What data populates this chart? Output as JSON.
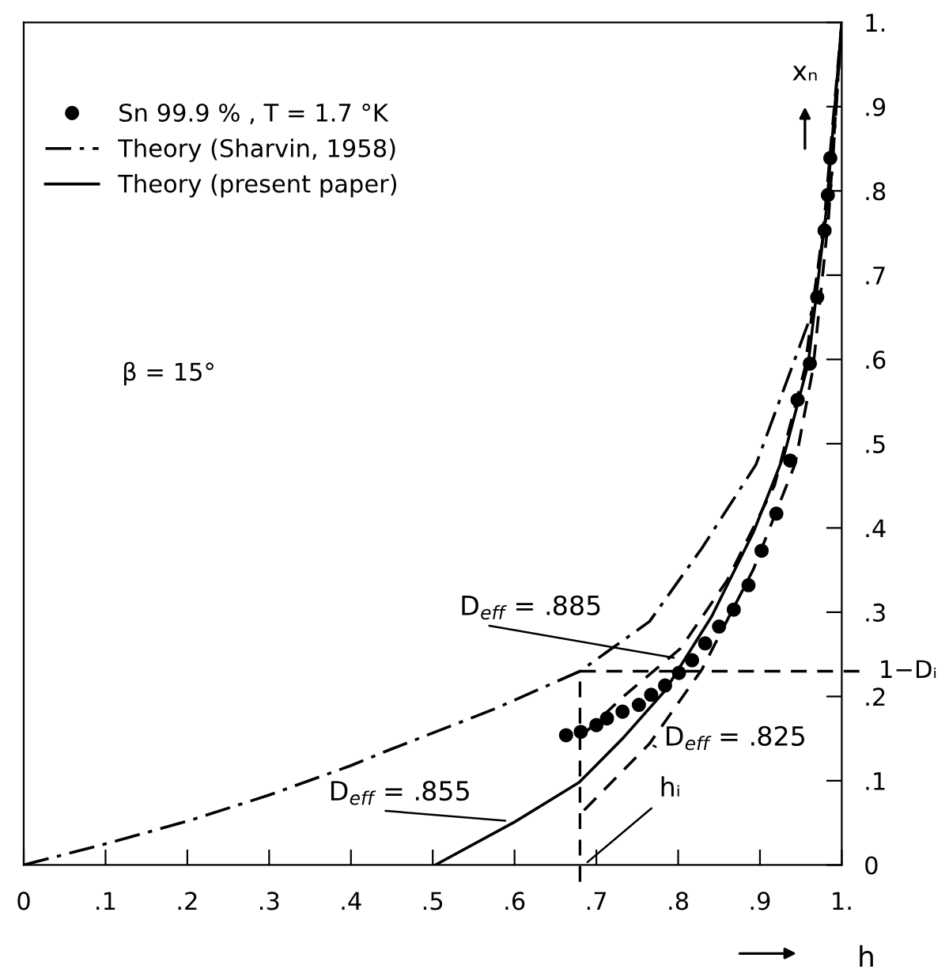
{
  "chart_data": {
    "type": "line",
    "xlabel": "h",
    "ylabel": "xₙ",
    "xlim": [
      0,
      1
    ],
    "ylim": [
      0,
      1
    ],
    "xticks": [
      {
        "value": 0,
        "label": "0"
      },
      {
        "value": 0.1,
        "label": ".1"
      },
      {
        "value": 0.2,
        "label": ".2"
      },
      {
        "value": 0.3,
        "label": ".3"
      },
      {
        "value": 0.4,
        "label": ".4"
      },
      {
        "value": 0.5,
        "label": ".5"
      },
      {
        "value": 0.6,
        "label": ".6"
      },
      {
        "value": 0.7,
        "label": ".7"
      },
      {
        "value": 0.8,
        "label": ".8"
      },
      {
        "value": 0.9,
        "label": ".9"
      },
      {
        "value": 1,
        "label": "1."
      }
    ],
    "yticks": [
      {
        "value": 0,
        "label": "0"
      },
      {
        "value": 0.1,
        "label": ".1"
      },
      {
        "value": 0.2,
        "label": ".2"
      },
      {
        "value": 0.3,
        "label": ".3"
      },
      {
        "value": 0.4,
        "label": ".4"
      },
      {
        "value": 0.5,
        "label": ".5"
      },
      {
        "value": 0.6,
        "label": ".6"
      },
      {
        "value": 0.7,
        "label": ".7"
      },
      {
        "value": 0.8,
        "label": ".8"
      },
      {
        "value": 0.9,
        "label": ".9"
      },
      {
        "value": 1,
        "label": "1."
      }
    ],
    "grid": false,
    "legend": "top left",
    "series": [
      {
        "type": "scatter",
        "name": "Sn 99.9 % , T = 1.7 °K",
        "color": "#000000",
        "marker": "circle",
        "x": [
          0.663,
          0.681,
          0.7,
          0.713,
          0.732,
          0.752,
          0.767,
          0.784,
          0.801,
          0.817,
          0.833,
          0.85,
          0.868,
          0.886,
          0.902,
          0.92,
          0.937,
          0.946,
          0.961,
          0.97,
          0.979,
          0.983,
          0.986
        ],
        "values": [
          0.154,
          0.158,
          0.166,
          0.174,
          0.182,
          0.19,
          0.202,
          0.213,
          0.228,
          0.243,
          0.263,
          0.283,
          0.303,
          0.332,
          0.373,
          0.417,
          0.48,
          0.552,
          0.595,
          0.674,
          0.753,
          0.795,
          0.839
        ]
      },
      {
        "name": "Theory (Sharvin, 1958)",
        "color": "#000000",
        "line_style": "dashdot",
        "x": [
          0,
          0.1,
          0.2,
          0.3,
          0.4,
          0.448,
          0.575,
          0.68,
          0.765,
          0.829,
          0.895,
          0.962,
          0.987,
          1
        ],
        "values": [
          0,
          0.025,
          0.052,
          0.083,
          0.118,
          0.137,
          0.185,
          0.23,
          0.289,
          0.376,
          0.475,
          0.651,
          0.807,
          1
        ]
      },
      {
        "name": "Theory (present paper)",
        "color": "#000000",
        "line_style": "solid",
        "x": [
          0.503,
          0.6,
          0.679,
          0.733,
          0.784,
          0.841,
          0.892,
          0.93,
          0.959,
          0.981,
          1
        ],
        "values": [
          0,
          0.051,
          0.098,
          0.151,
          0.207,
          0.295,
          0.395,
          0.488,
          0.595,
          0.776,
          1
        ]
      },
      {
        "color": "#000000",
        "line_style": "dashed",
        "x": [
          0.685,
          0.765,
          0.829,
          0.892,
          0.943,
          0.965,
          0.984,
          1
        ],
        "values": [
          0.065,
          0.144,
          0.232,
          0.351,
          0.476,
          0.59,
          0.77,
          1
        ]
      },
      {
        "color": "#000000",
        "line_style": "dashed",
        "x": [
          0.683,
          0.733,
          0.803,
          0.86,
          0.918,
          0.955,
          0.979,
          1
        ],
        "values": [
          0.154,
          0.2,
          0.257,
          0.338,
          0.451,
          0.59,
          0.77,
          1
        ]
      }
    ],
    "ref_lines": [
      {
        "axis": "x",
        "value": 0.68,
        "line_style": "dashed"
      },
      {
        "axis": "y",
        "value": 0.23,
        "label": "1−Dᵢ",
        "line_style": "dashed"
      }
    ],
    "annotations": [
      "β = 15°",
      {
        "text": "D$_{eff}$ = .885",
        "x": 0.8,
        "y": 0.245
      },
      {
        "text": "D$_{eff}$ = .855",
        "x": 0.594,
        "y": 0.052
      },
      {
        "text": "D$_{eff}$ = .825",
        "x": 0.765,
        "y": 0.144
      },
      {
        "text": "hᵢ",
        "x": 0.685,
        "y": 0.0
      }
    ]
  }
}
